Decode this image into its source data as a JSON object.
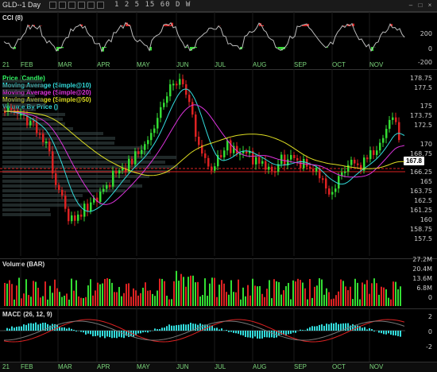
{
  "window": {
    "title": "GLD--1 Day",
    "timeframes": "1 2 5 15 60 D W",
    "controls": [
      "–",
      "□",
      "×"
    ]
  },
  "panels": {
    "cci": {
      "label": "CCI (8)",
      "axis": [
        "200",
        "0",
        "-200"
      ]
    },
    "price": {
      "legend": [
        {
          "text": "Price (Candle)",
          "color": "#33ff66"
        },
        {
          "text": "Moving Average (Simple@10)",
          "color": "#33dddd"
        },
        {
          "text": "Moving Average (Simple@20)",
          "color": "#dd33dd"
        },
        {
          "text": "Moving Average (Simple@50)",
          "color": "#dddd22"
        },
        {
          "text": "Volume By Price ()",
          "color": "#33dddd"
        }
      ],
      "axis": [
        "178.75",
        "177.5",
        "175",
        "173.75",
        "172.5",
        "170",
        "168.75",
        "167.8",
        "166.25",
        "165",
        "163.75",
        "162.5",
        "161.25",
        "160",
        "158.75",
        "157.5"
      ],
      "last_price": "167.8"
    },
    "volume": {
      "label": "Volume (BAR)",
      "axis": [
        "27.2M",
        "20.4M",
        "13.6M",
        "6.8M",
        "0"
      ]
    },
    "macd": {
      "label": "MACD (26, 12, 9)",
      "axis": [
        "2",
        "0",
        "-2"
      ]
    }
  },
  "months": [
    "21",
    "FEB",
    "MAR",
    "APR",
    "MAY",
    "JUN",
    "JUL",
    "AUG",
    "SEP",
    "OCT",
    "NOV"
  ],
  "colors": {
    "up": "#33dd33",
    "down": "#dd2222",
    "ma10": "#33dddd",
    "ma20": "#dd33dd",
    "ma50": "#dddd22",
    "vbp": "#3a4a4a"
  }
}
